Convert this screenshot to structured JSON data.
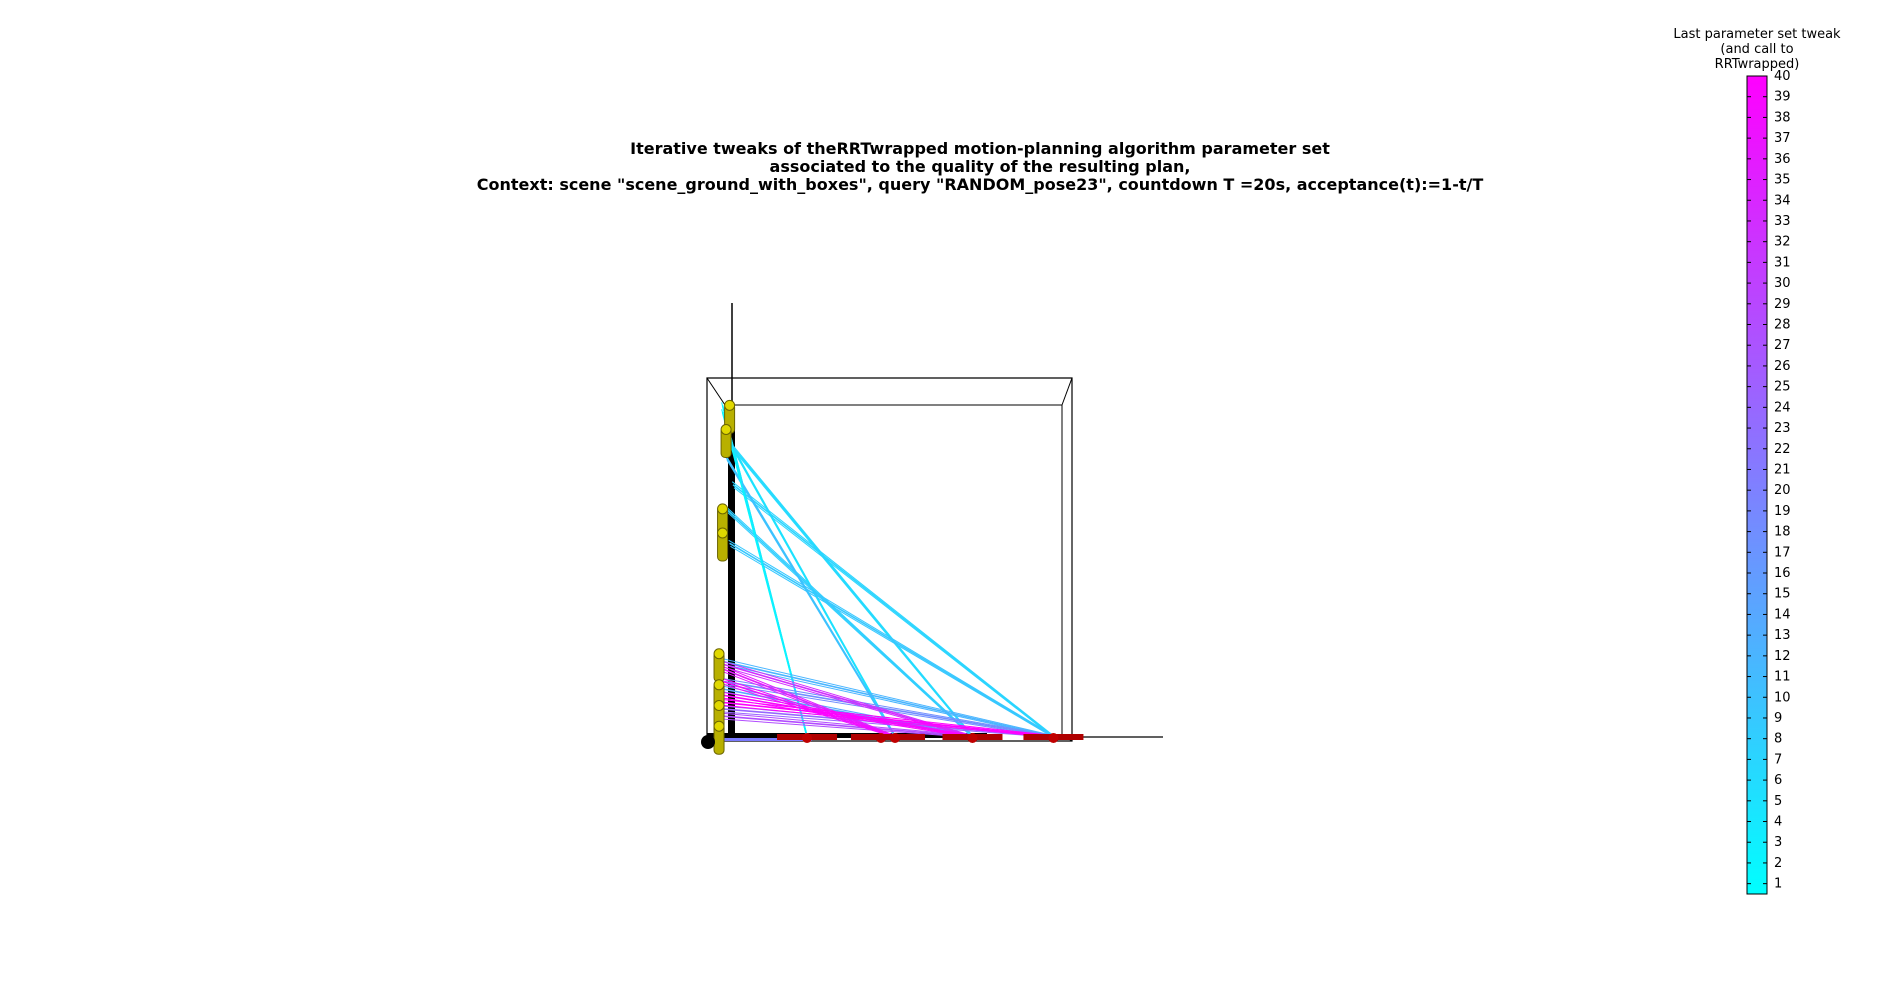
{
  "chart_data": {
    "type": "line",
    "title": [
      "Iterative tweaks of theRRTwrapped motion-planning algorithm parameter set",
      "associated to the quality of the resulting plan,",
      "Context: scene \"scene_ground_with_boxes\", query \"RANDOM_pose23\", countdown T =20s, acceptance(t):=1-t/T"
    ],
    "colorbar": {
      "title": [
        "Last parameter set tweak",
        "(and call to",
        "RRTwrapped)"
      ],
      "min": 0.5,
      "max": 40,
      "ticks": [
        1,
        2,
        3,
        4,
        5,
        6,
        7,
        8,
        9,
        10,
        11,
        12,
        13,
        14,
        15,
        16,
        17,
        18,
        19,
        20,
        21,
        22,
        23,
        24,
        25,
        26,
        27,
        28,
        29,
        30,
        31,
        32,
        33,
        34,
        35,
        36,
        37,
        38,
        39,
        40
      ],
      "colormap": [
        "#00ffff",
        "#ff00ff"
      ]
    },
    "grid": false,
    "legend": "none",
    "segments": [
      {
        "tweak": 3,
        "from": [
          0.03,
          0.97
        ],
        "to": [
          0.27,
          0.01
        ]
      },
      {
        "tweak": 4,
        "from": [
          0.04,
          0.93
        ],
        "to": [
          0.27,
          0.01
        ]
      },
      {
        "tweak": 5,
        "from": [
          0.03,
          0.9
        ],
        "to": [
          0.52,
          0.01
        ]
      },
      {
        "tweak": 6,
        "from": [
          0.05,
          0.86
        ],
        "to": [
          0.74,
          0.01
        ]
      },
      {
        "tweak": 7,
        "from": [
          0.06,
          0.74
        ],
        "to": [
          0.97,
          0.01
        ]
      },
      {
        "tweak": 8,
        "from": [
          0.04,
          0.67
        ],
        "to": [
          0.74,
          0.01
        ]
      },
      {
        "tweak": 9,
        "from": [
          0.05,
          0.57
        ],
        "to": [
          0.97,
          0.01
        ]
      },
      {
        "tweak": 10,
        "from": [
          0.04,
          0.82
        ],
        "to": [
          0.52,
          0.01
        ]
      },
      {
        "tweak": 2,
        "from": [
          0.03,
          0.95
        ],
        "to": [
          0.27,
          0.01
        ]
      },
      {
        "tweak": 12,
        "from": [
          0.02,
          0.23
        ],
        "to": [
          0.97,
          0.01
        ]
      },
      {
        "tweak": 14,
        "from": [
          0.02,
          0.15
        ],
        "to": [
          0.74,
          0.01
        ]
      },
      {
        "tweak": 18,
        "from": [
          0.03,
          0.17
        ],
        "to": [
          0.97,
          0.01
        ]
      },
      {
        "tweak": 24,
        "from": [
          0.03,
          0.09
        ],
        "to": [
          0.97,
          0.01
        ]
      },
      {
        "tweak": 28,
        "from": [
          0.02,
          0.07
        ],
        "to": [
          0.74,
          0.01
        ]
      },
      {
        "tweak": 33,
        "from": [
          0.03,
          0.22
        ],
        "to": [
          0.74,
          0.01
        ]
      },
      {
        "tweak": 36,
        "from": [
          0.02,
          0.21
        ],
        "to": [
          0.52,
          0.01
        ]
      },
      {
        "tweak": 38,
        "from": [
          0.03,
          0.17
        ],
        "to": [
          0.52,
          0.01
        ]
      },
      {
        "tweak": 39,
        "from": [
          0.03,
          0.13
        ],
        "to": [
          0.74,
          0.01
        ]
      },
      {
        "tweak": 40,
        "from": [
          0.02,
          0.11
        ],
        "to": [
          0.97,
          0.01
        ]
      }
    ],
    "poses_yellow": [
      [
        0.05,
        0.97
      ],
      [
        0.04,
        0.9
      ],
      [
        0.03,
        0.67
      ],
      [
        0.03,
        0.6
      ],
      [
        0.02,
        0.25
      ],
      [
        0.02,
        0.16
      ],
      [
        0.02,
        0.1
      ],
      [
        0.02,
        0.04
      ]
    ],
    "poses_red": [
      [
        0.27,
        0.0
      ],
      [
        0.48,
        0.0
      ],
      [
        0.52,
        0.0
      ],
      [
        0.74,
        0.0
      ],
      [
        0.97,
        0.0
      ]
    ]
  }
}
